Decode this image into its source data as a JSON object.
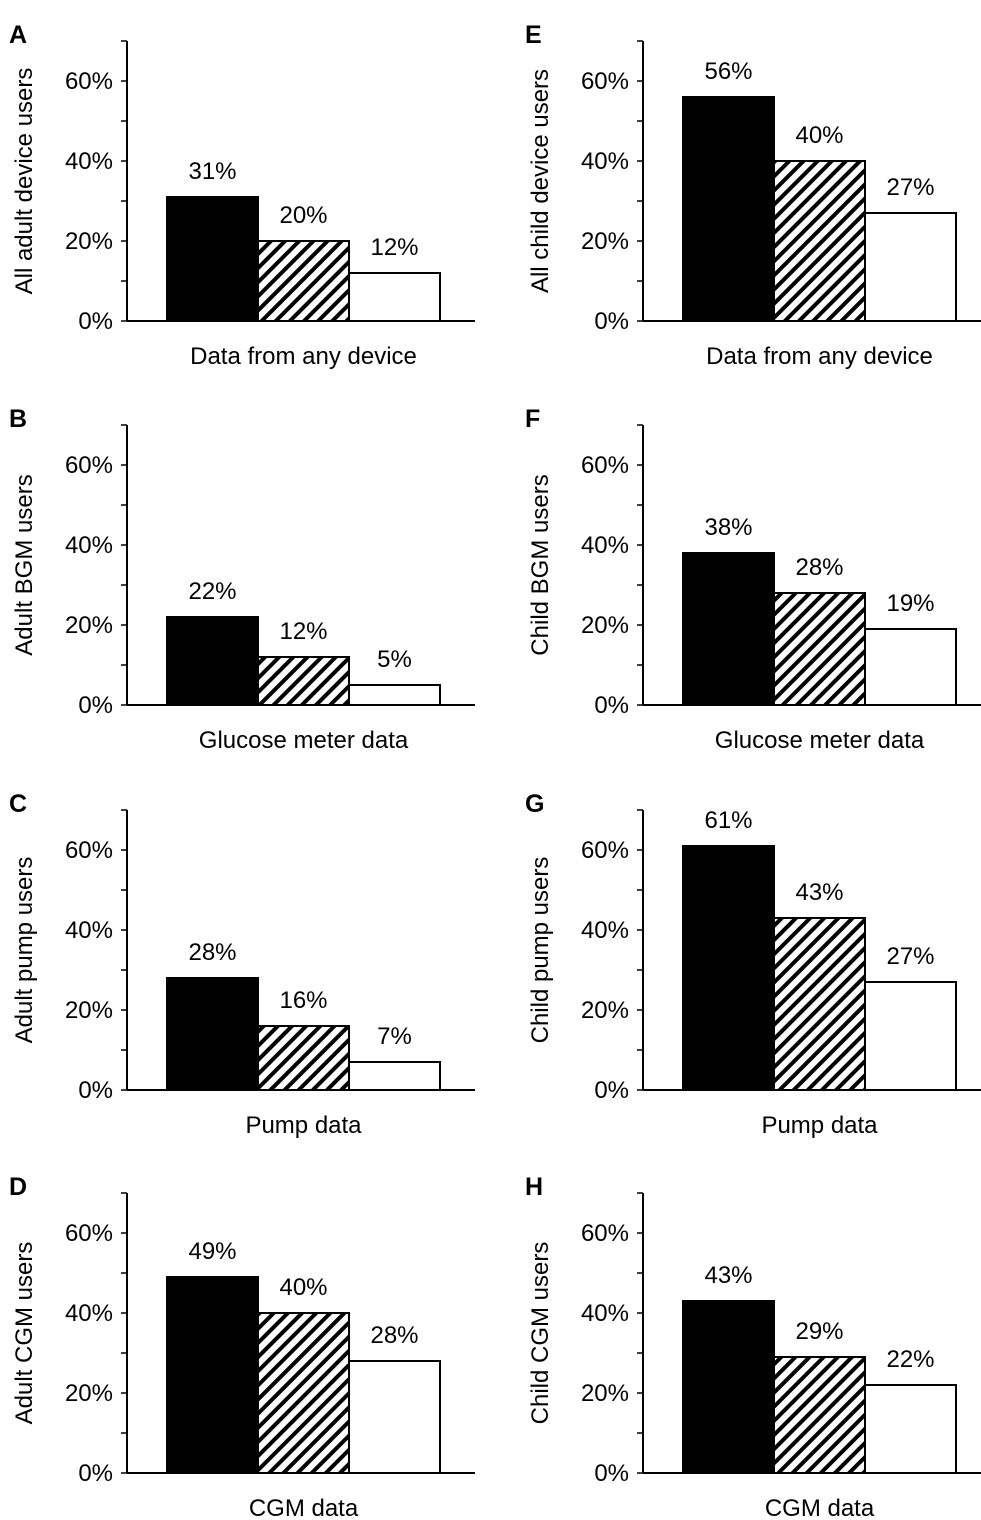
{
  "chart_data": [
    {
      "panel": "A",
      "type": "bar",
      "categories": [
        "Data from any device"
      ],
      "ylabel": "All adult device users",
      "ylim": [
        0,
        70
      ],
      "yticks": [
        "0%",
        "20%",
        "40%",
        "60%"
      ],
      "tick_values": [
        0,
        20,
        40,
        60
      ],
      "grid": false,
      "series_colors": [
        "#000000",
        "hatched",
        "#ffffff"
      ],
      "values": [
        31,
        20,
        12
      ],
      "labels": [
        "31%",
        "20%",
        "12%"
      ]
    },
    {
      "panel": "B",
      "type": "bar",
      "categories": [
        "Glucose meter data"
      ],
      "ylabel": "Adult BGM users",
      "ylim": [
        0,
        70
      ],
      "yticks": [
        "0%",
        "20%",
        "40%",
        "60%"
      ],
      "tick_values": [
        0,
        20,
        40,
        60
      ],
      "grid": false,
      "series_colors": [
        "#000000",
        "hatched",
        "#ffffff"
      ],
      "values": [
        22,
        12,
        5
      ],
      "labels": [
        "22%",
        "12%",
        "5%"
      ]
    },
    {
      "panel": "C",
      "type": "bar",
      "categories": [
        "Pump data"
      ],
      "ylabel": "Adult pump users",
      "ylim": [
        0,
        70
      ],
      "yticks": [
        "0%",
        "20%",
        "40%",
        "60%"
      ],
      "tick_values": [
        0,
        20,
        40,
        60
      ],
      "grid": false,
      "series_colors": [
        "#000000",
        "hatched",
        "#ffffff"
      ],
      "values": [
        28,
        16,
        7
      ],
      "labels": [
        "28%",
        "16%",
        "7%"
      ]
    },
    {
      "panel": "D",
      "type": "bar",
      "categories": [
        "CGM data"
      ],
      "ylabel": "Adult CGM users",
      "ylim": [
        0,
        70
      ],
      "yticks": [
        "0%",
        "20%",
        "40%",
        "60%"
      ],
      "tick_values": [
        0,
        20,
        40,
        60
      ],
      "grid": false,
      "series_colors": [
        "#000000",
        "hatched",
        "#ffffff"
      ],
      "values": [
        49,
        40,
        28
      ],
      "labels": [
        "49%",
        "40%",
        "28%"
      ]
    },
    {
      "panel": "E",
      "type": "bar",
      "categories": [
        "Data from any device"
      ],
      "ylabel": "All child device users",
      "ylim": [
        0,
        70
      ],
      "yticks": [
        "0%",
        "20%",
        "40%",
        "60%"
      ],
      "tick_values": [
        0,
        20,
        40,
        60
      ],
      "grid": false,
      "series_colors": [
        "#000000",
        "hatched",
        "#ffffff"
      ],
      "values": [
        56,
        40,
        27
      ],
      "labels": [
        "56%",
        "40%",
        "27%"
      ]
    },
    {
      "panel": "F",
      "type": "bar",
      "categories": [
        "Glucose meter data"
      ],
      "ylabel": "Child BGM users",
      "ylim": [
        0,
        70
      ],
      "yticks": [
        "0%",
        "20%",
        "40%",
        "60%"
      ],
      "tick_values": [
        0,
        20,
        40,
        60
      ],
      "grid": false,
      "series_colors": [
        "#000000",
        "hatched",
        "#ffffff"
      ],
      "values": [
        38,
        28,
        19
      ],
      "labels": [
        "38%",
        "28%",
        "19%"
      ]
    },
    {
      "panel": "G",
      "type": "bar",
      "categories": [
        "Pump data"
      ],
      "ylabel": "Child pump users",
      "ylim": [
        0,
        70
      ],
      "yticks": [
        "0%",
        "20%",
        "40%",
        "60%"
      ],
      "tick_values": [
        0,
        20,
        40,
        60
      ],
      "grid": false,
      "series_colors": [
        "#000000",
        "hatched",
        "#ffffff"
      ],
      "values": [
        61,
        43,
        27
      ],
      "labels": [
        "61%",
        "43%",
        "27%"
      ]
    },
    {
      "panel": "H",
      "type": "bar",
      "categories": [
        "CGM data"
      ],
      "ylabel": "Child CGM users",
      "ylim": [
        0,
        70
      ],
      "yticks": [
        "0%",
        "20%",
        "40%",
        "60%"
      ],
      "tick_values": [
        0,
        20,
        40,
        60
      ],
      "grid": false,
      "series_colors": [
        "#000000",
        "hatched",
        "#ffffff"
      ],
      "values": [
        43,
        29,
        22
      ],
      "labels": [
        "43%",
        "29%",
        "22%"
      ]
    }
  ]
}
